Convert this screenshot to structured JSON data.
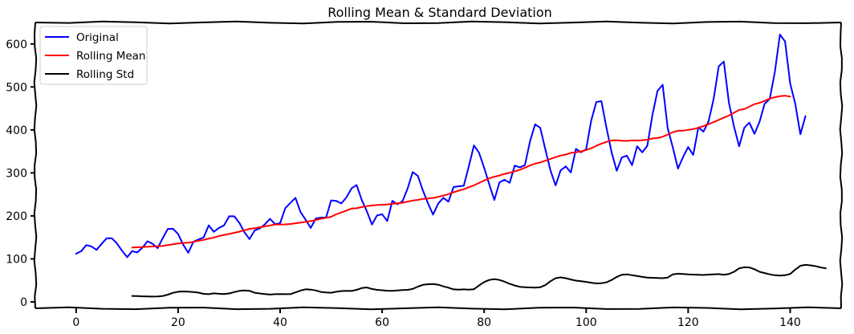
{
  "chart_data": {
    "type": "line",
    "title": "Rolling Mean & Standard Deviation",
    "xlabel": "",
    "ylabel": "",
    "xlim": [
      -8,
      150
    ],
    "ylim": [
      -15,
      650
    ],
    "xticks": [
      0,
      20,
      40,
      60,
      80,
      100,
      120,
      140
    ],
    "yticks": [
      0,
      100,
      200,
      300,
      400,
      500,
      600
    ],
    "grid": false,
    "legend": "top-left",
    "window": 12,
    "series": [
      {
        "name": "Original",
        "color": "#0000ff",
        "x_start": 0,
        "values": [
          112,
          118,
          132,
          129,
          121,
          135,
          148,
          148,
          136,
          119,
          104,
          118,
          115,
          126,
          141,
          135,
          125,
          149,
          170,
          170,
          158,
          133,
          114,
          140,
          145,
          150,
          178,
          163,
          172,
          178,
          199,
          199,
          184,
          162,
          146,
          166,
          171,
          180,
          193,
          181,
          183,
          218,
          230,
          242,
          209,
          191,
          172,
          194,
          196,
          196,
          236,
          235,
          229,
          243,
          264,
          272,
          237,
          211,
          180,
          201,
          204,
          188,
          235,
          227,
          234,
          264,
          302,
          293,
          259,
          229,
          203,
          229,
          242,
          233,
          267,
          269,
          270,
          315,
          364,
          347,
          312,
          274,
          237,
          278,
          284,
          277,
          317,
          313,
          318,
          374,
          413,
          405,
          355,
          306,
          271,
          306,
          315,
          301,
          356,
          348,
          355,
          422,
          465,
          467,
          404,
          347,
          305,
          336,
          340,
          318,
          362,
          348,
          363,
          435,
          491,
          505,
          404,
          359,
          310,
          337,
          360,
          342,
          406,
          396,
          420,
          472,
          548,
          559,
          463,
          407,
          362,
          405,
          417,
          391,
          419,
          461,
          472,
          535,
          622,
          606,
          508,
          461,
          390,
          432
        ]
      },
      {
        "name": "Rolling Mean",
        "color": "#ff0000",
        "x_start": 11,
        "values": [
          126.67,
          126.92,
          127.58,
          128.33,
          128.83,
          129.17,
          130.33,
          132.17,
          134.0,
          135.83,
          137.0,
          137.83,
          139.67,
          142.17,
          144.17,
          147.25,
          149.58,
          153.25,
          155.67,
          158.0,
          160.5,
          163.33,
          166.67,
          169.67,
          171.25,
          173.58,
          175.5,
          177.5,
          180.08,
          180.08,
          180.17,
          181.08,
          182.83,
          184.33,
          186.25,
          188.08,
          190.42,
          193.25,
          195.5,
          198.0,
          203.67,
          208.08,
          212.42,
          217.0,
          217.83,
          220.5,
          222.67,
          224.25,
          225.17,
          225.92,
          226.75,
          228.25,
          229.08,
          230.67,
          233.33,
          235.67,
          237.25,
          239.58,
          240.5,
          241.92,
          244.25,
          247.25,
          250.58,
          254.92,
          258.58,
          262.08,
          266.75,
          270.92,
          276.5,
          282.17,
          287.25,
          291.08,
          293.92,
          297.75,
          300.58,
          303.67,
          307.42,
          312.0,
          317.33,
          321.67,
          324.33,
          328.33,
          332.58,
          336.83,
          340.33,
          342.67,
          346.67,
          348.08,
          350.0,
          353.25,
          357.5,
          363.08,
          368.08,
          372.25,
          375.58,
          375.83,
          375.08,
          374.5,
          375.67,
          375.42,
          376.17,
          377.25,
          380.17,
          381.17,
          384.17,
          389.25,
          394.92,
          398.17,
          398.17,
          400.25,
          402.0,
          405.0,
          409.17,
          413.33,
          418.17,
          423.5,
          428.5,
          433.67,
          440.0,
          446.5,
          448.5,
          454.0,
          460.0,
          463.0,
          467.58,
          472.83,
          476.17,
          478.58,
          479.58,
          477.5
        ]
      },
      {
        "name": "Rolling Std",
        "color": "#000000",
        "x_start": 11,
        "values": [
          13.72,
          13.3,
          12.8,
          12.4,
          12.2,
          12.6,
          13.8,
          16.8,
          21.0,
          23.5,
          24.3,
          23.8,
          23.0,
          21.5,
          18.6,
          17.8,
          19.8,
          18.9,
          18.3,
          19.5,
          22.8,
          25.6,
          26.6,
          25.8,
          21.2,
          19.6,
          18.2,
          17.0,
          17.8,
          18.2,
          17.8,
          17.9,
          22.0,
          26.3,
          29.2,
          28.6,
          26.4,
          23.2,
          21.9,
          21.3,
          23.4,
          25.1,
          25.8,
          25.3,
          28.0,
          32.0,
          33.5,
          30.0,
          28.0,
          27.0,
          26.0,
          25.5,
          26.4,
          27.5,
          28.0,
          30.0,
          35.5,
          39.5,
          41.0,
          41.5,
          40.0,
          36.0,
          33.0,
          29.0,
          28.5,
          29.0,
          28.5,
          29.5,
          38.0,
          46.0,
          51.0,
          53.0,
          51.0,
          47.0,
          42.0,
          38.0,
          35.0,
          34.0,
          33.5,
          33.0,
          34.0,
          39.0,
          48.0,
          55.0,
          57.0,
          55.0,
          52.0,
          49.5,
          48.0,
          46.5,
          44.5,
          43.0,
          43.5,
          45.5,
          51.0,
          58.0,
          63.0,
          64.0,
          62.0,
          60.0,
          58.0,
          56.5,
          56.0,
          55.5,
          55.0,
          56.5,
          64.0,
          65.5,
          65.0,
          64.0,
          63.5,
          63.0,
          62.5,
          63.5,
          64.0,
          64.5,
          63.0,
          65.0,
          70.0,
          78.0,
          80.5,
          80.0,
          76.0,
          70.0,
          67.0,
          64.0,
          62.0,
          61.0,
          62.0,
          65.0,
          75.0,
          84.0,
          86.0,
          85.0,
          83.0,
          80.0,
          78.0
        ]
      }
    ]
  }
}
